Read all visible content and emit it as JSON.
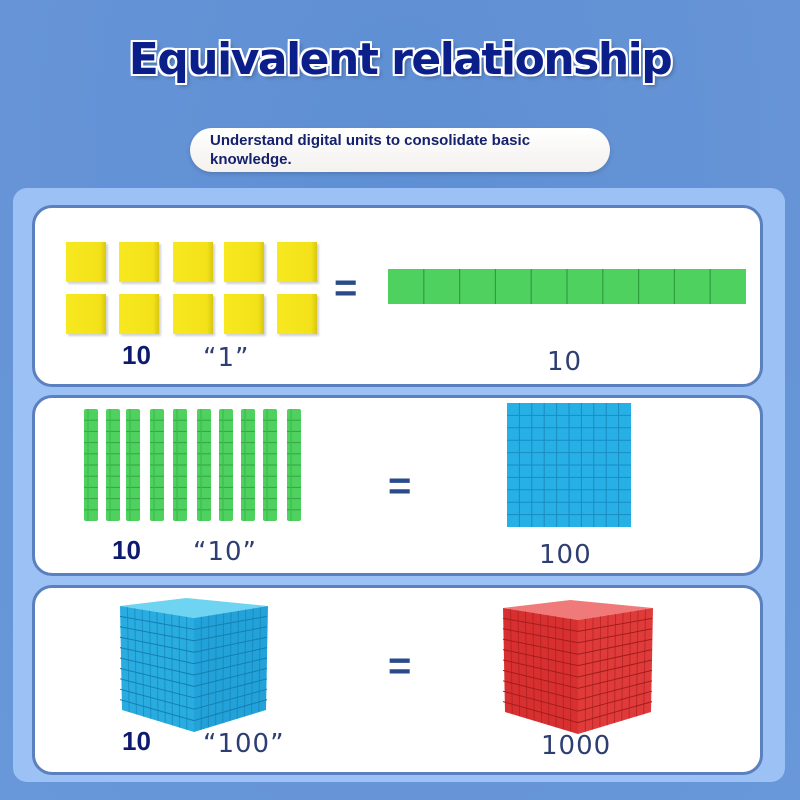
{
  "title": "Equivalent relationship",
  "subtitle": "Understand digital units to consolidate basic knowledge.",
  "colors": {
    "background": "#6593d6",
    "panel": "#9cc1f5",
    "title": "#0b1f8a",
    "unit_cube": "#f3e21a",
    "rod": "#4fd15f",
    "flat": "#27b0e6",
    "big_cube": "#db2f2f"
  },
  "rows": [
    {
      "count": "10",
      "quoted": "“1”",
      "equals": "=",
      "result": "10"
    },
    {
      "count": "10",
      "quoted": "“10”",
      "equals": "=",
      "result": "100"
    },
    {
      "count": "10",
      "quoted": "“100”",
      "equals": "=",
      "result": "1000"
    }
  ]
}
